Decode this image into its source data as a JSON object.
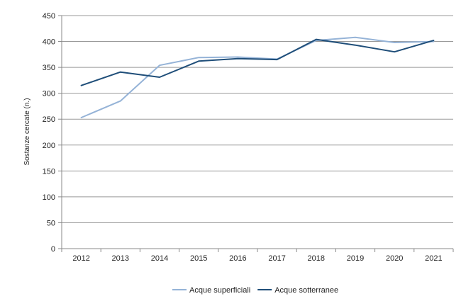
{
  "chart_data": {
    "type": "line",
    "title": "",
    "xlabel": "",
    "ylabel": "Sostanze cercate (n.)",
    "categories": [
      "2012",
      "2013",
      "2014",
      "2015",
      "2016",
      "2017",
      "2018",
      "2019",
      "2020",
      "2021"
    ],
    "ylim": [
      0,
      450
    ],
    "yticks": [
      0,
      50,
      100,
      150,
      200,
      250,
      300,
      350,
      400,
      450
    ],
    "grid": "horizontal",
    "legend_position": "bottom",
    "series": [
      {
        "name": "Acque superficiali",
        "color": "#95B3D7",
        "values": [
          253,
          285,
          354,
          369,
          370,
          366,
          402,
          408,
          398,
          400
        ]
      },
      {
        "name": "Acque sotterranee",
        "color": "#1F4E79",
        "values": [
          315,
          341,
          331,
          362,
          367,
          365,
          404,
          393,
          380,
          402
        ]
      }
    ]
  }
}
